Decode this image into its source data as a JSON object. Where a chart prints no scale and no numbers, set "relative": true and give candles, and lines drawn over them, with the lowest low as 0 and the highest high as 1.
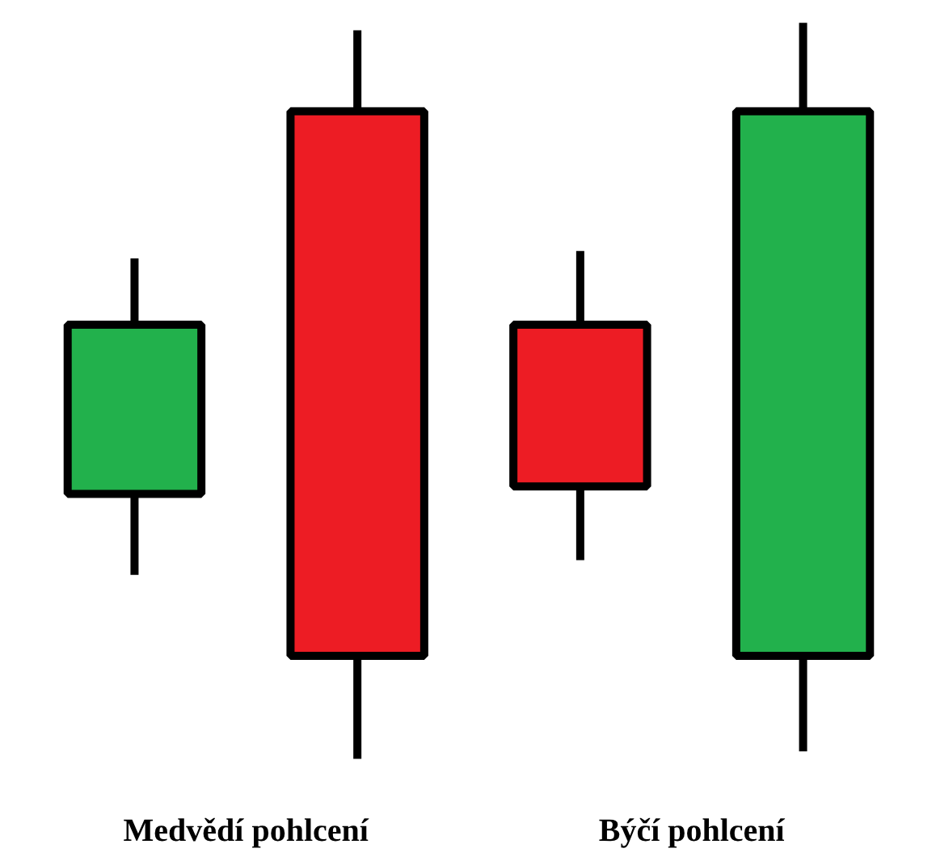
{
  "chart_data": {
    "type": "candlestick",
    "relative": true,
    "categories": [
      null,
      null,
      null,
      null
    ],
    "ohlc": [
      [
        0.36,
        0.68,
        0.25,
        0.59
      ],
      [
        0.88,
        0.99,
        0,
        0.14
      ],
      [
        0.59,
        0.69,
        0.27,
        0.37
      ],
      [
        0.14,
        1,
        0.01,
        0.88
      ]
    ],
    "colors": [
      "#22b14c",
      "#ed1c24",
      "#ed1c24",
      "#22b14c"
    ],
    "annotations": [
      "Medvědí pohlcení",
      "Býčí pohlcení"
    ]
  }
}
